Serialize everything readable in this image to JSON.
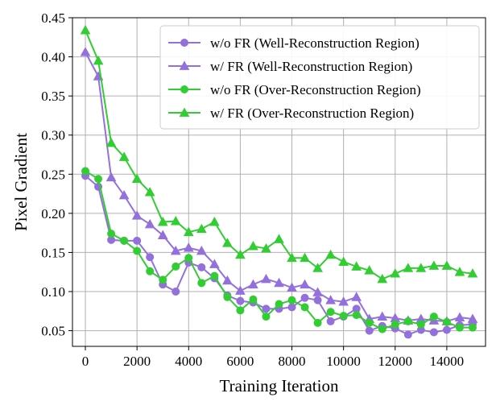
{
  "chart_data": {
    "type": "line",
    "xlabel": "Training Iteration",
    "ylabel": "Pixel Gradient",
    "xlim": [
      -500,
      15500
    ],
    "ylim": [
      0.03,
      0.45
    ],
    "xticks": [
      0,
      2000,
      4000,
      6000,
      8000,
      10000,
      12000,
      14000
    ],
    "yticks": [
      0.05,
      0.1,
      0.15,
      0.2,
      0.25,
      0.3,
      0.35,
      0.4,
      0.45
    ],
    "xtick_labels": [
      "0",
      "2000",
      "4000",
      "6000",
      "8000",
      "10000",
      "12000",
      "14000"
    ],
    "ytick_labels": [
      "0.05",
      "0.10",
      "0.15",
      "0.20",
      "0.25",
      "0.30",
      "0.35",
      "0.40",
      "0.45"
    ],
    "grid": true,
    "legend_position": "top-right",
    "x": [
      0,
      500,
      1000,
      1500,
      2000,
      2500,
      3000,
      3500,
      4000,
      4500,
      5000,
      5500,
      6000,
      6500,
      7000,
      7500,
      8000,
      8500,
      9000,
      9500,
      10000,
      10500,
      11000,
      11500,
      12000,
      12500,
      13000,
      13500,
      14000,
      14500,
      15000
    ],
    "series": [
      {
        "name": "w/o FR (Well-Reconstruction Region)",
        "color": "#9370db",
        "marker": "circle",
        "values": [
          0.248,
          0.234,
          0.166,
          0.165,
          0.165,
          0.144,
          0.109,
          0.1,
          0.137,
          0.131,
          0.117,
          0.095,
          0.088,
          0.086,
          0.078,
          0.078,
          0.08,
          0.092,
          0.089,
          0.062,
          0.068,
          0.078,
          0.05,
          0.056,
          0.053,
          0.045,
          0.051,
          0.048,
          0.051,
          0.057,
          0.058
        ]
      },
      {
        "name": "w/ FR (Well-Reconstruction Region)",
        "color": "#9370db",
        "marker": "triangle",
        "values": [
          0.406,
          0.375,
          0.246,
          0.223,
          0.197,
          0.186,
          0.172,
          0.152,
          0.156,
          0.152,
          0.135,
          0.114,
          0.101,
          0.109,
          0.116,
          0.111,
          0.105,
          0.109,
          0.099,
          0.089,
          0.087,
          0.093,
          0.065,
          0.068,
          0.066,
          0.063,
          0.065,
          0.063,
          0.062,
          0.067,
          0.065
        ]
      },
      {
        "name": "w/o FR (Over-Reconstruction Region)",
        "color": "#32cd32",
        "marker": "circle",
        "values": [
          0.254,
          0.244,
          0.174,
          0.165,
          0.152,
          0.126,
          0.115,
          0.132,
          0.143,
          0.111,
          0.12,
          0.093,
          0.076,
          0.09,
          0.068,
          0.084,
          0.089,
          0.08,
          0.06,
          0.074,
          0.069,
          0.07,
          0.06,
          0.052,
          0.058,
          0.062,
          0.058,
          0.068,
          0.061,
          0.054,
          0.054
        ]
      },
      {
        "name": "w/ FR (Over-Reconstruction Region)",
        "color": "#32cd32",
        "marker": "triangle",
        "values": [
          0.434,
          0.395,
          0.29,
          0.272,
          0.244,
          0.227,
          0.189,
          0.19,
          0.176,
          0.18,
          0.189,
          0.162,
          0.147,
          0.158,
          0.155,
          0.167,
          0.143,
          0.143,
          0.13,
          0.147,
          0.138,
          0.132,
          0.127,
          0.116,
          0.123,
          0.13,
          0.13,
          0.133,
          0.133,
          0.125,
          0.123
        ]
      }
    ]
  }
}
